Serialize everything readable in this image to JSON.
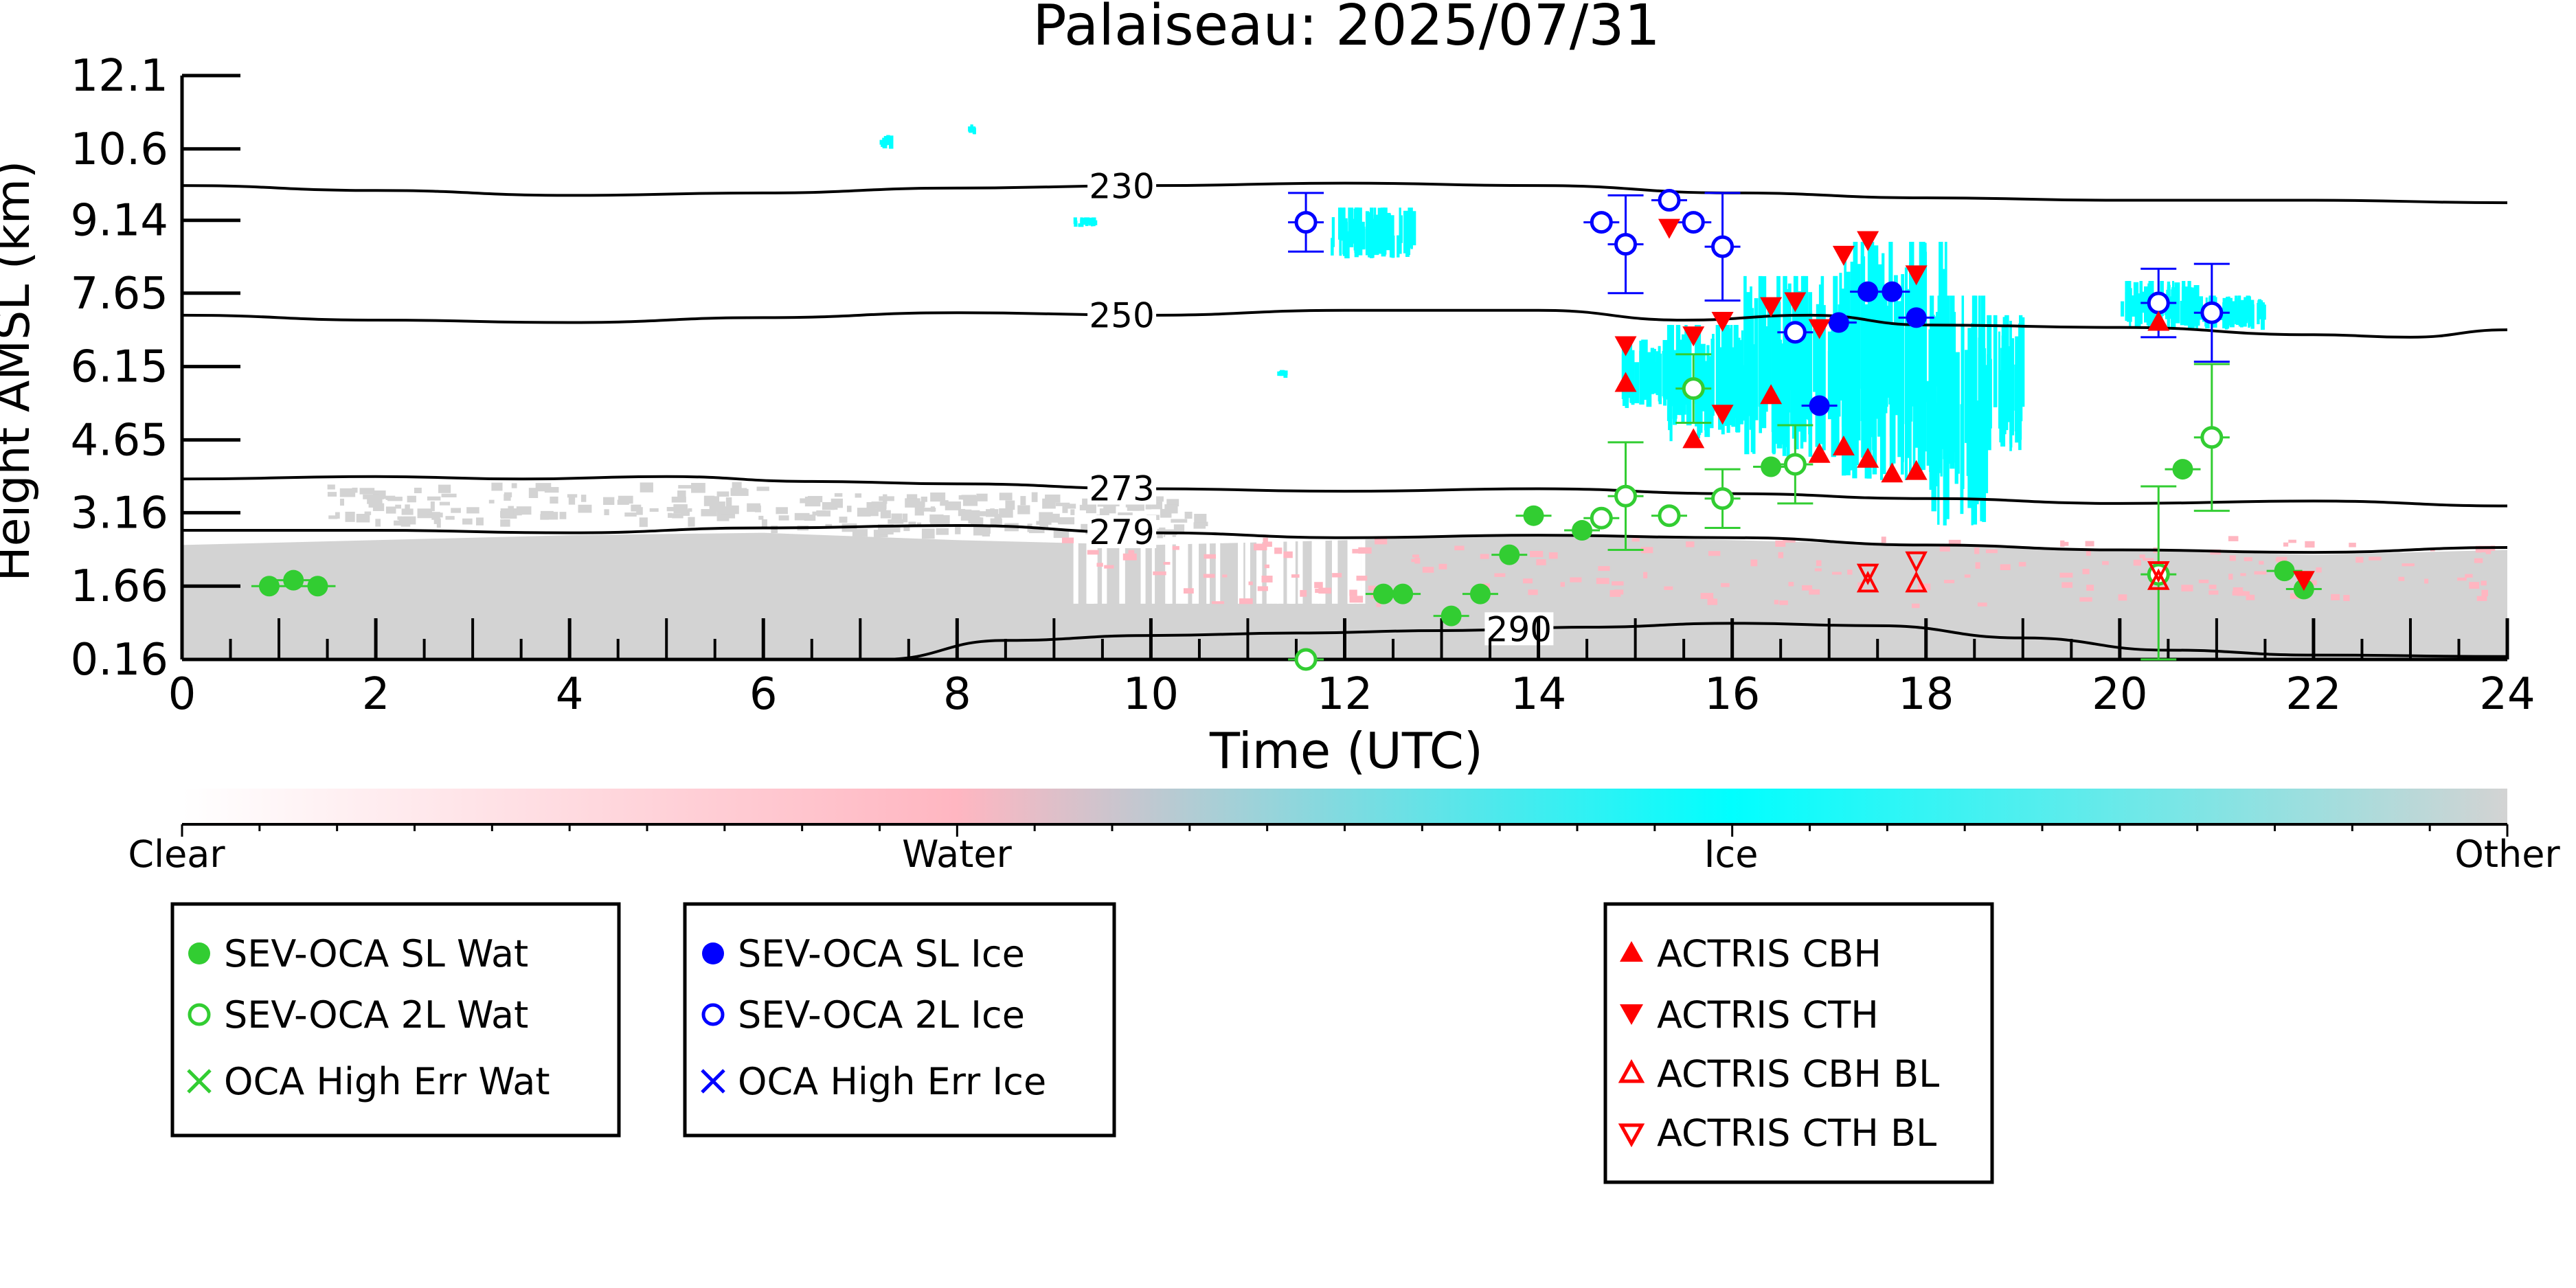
{
  "chart_data": {
    "type": "scatter",
    "title": "Palaiseau: 2025/07/31",
    "xlabel": "Time (UTC)",
    "ylabel": "Height AMSL (km)",
    "xlim": [
      0,
      24
    ],
    "ylim": [
      0.16,
      12.1
    ],
    "x_ticks": [
      "0",
      "2",
      "4",
      "6",
      "8",
      "10",
      "12",
      "14",
      "16",
      "18",
      "20",
      "22",
      "24"
    ],
    "y_ticks": [
      "0.16",
      "1.66",
      "3.16",
      "4.65",
      "6.15",
      "7.65",
      "9.14",
      "10.6",
      "12.1"
    ],
    "grid": false,
    "colorbar": {
      "labels": [
        "Clear",
        "Water",
        "Ice",
        "Other"
      ],
      "colors": [
        "#ffffff",
        "#ffb6c1",
        "#00ffff",
        "#d3d3d3"
      ]
    },
    "colors": {
      "water": "#32cd32",
      "ice": "#0000ff",
      "actris": "#ff0000",
      "contour": "#000000",
      "cloud_ice": "#00ffff",
      "cloud_water": "#ffb6c1",
      "cloud_other": "#d3d3d3"
    },
    "contours": [
      {
        "label": "230",
        "label_x": 9.7,
        "points": [
          [
            0,
            9.85
          ],
          [
            2,
            9.75
          ],
          [
            4,
            9.65
          ],
          [
            6,
            9.7
          ],
          [
            8,
            9.8
          ],
          [
            10,
            9.85
          ],
          [
            12,
            9.9
          ],
          [
            14,
            9.85
          ],
          [
            16,
            9.7
          ],
          [
            18,
            9.6
          ],
          [
            20,
            9.55
          ],
          [
            22,
            9.55
          ],
          [
            24,
            9.5
          ]
        ]
      },
      {
        "label": "250",
        "label_x": 9.7,
        "points": [
          [
            0,
            7.2
          ],
          [
            2,
            7.1
          ],
          [
            4,
            7.05
          ],
          [
            6,
            7.15
          ],
          [
            8,
            7.25
          ],
          [
            10,
            7.2
          ],
          [
            12,
            7.3
          ],
          [
            14,
            7.3
          ],
          [
            15.5,
            7.1
          ],
          [
            16.8,
            7.2
          ],
          [
            18,
            7.0
          ],
          [
            20,
            6.95
          ],
          [
            22,
            6.8
          ],
          [
            23,
            6.75
          ],
          [
            24,
            6.9
          ]
        ]
      },
      {
        "label": "273",
        "label_x": 9.7,
        "points": [
          [
            0,
            3.85
          ],
          [
            2,
            3.9
          ],
          [
            3.5,
            3.85
          ],
          [
            5,
            3.9
          ],
          [
            6.5,
            3.8
          ],
          [
            8,
            3.75
          ],
          [
            10,
            3.65
          ],
          [
            12,
            3.6
          ],
          [
            14,
            3.65
          ],
          [
            16,
            3.55
          ],
          [
            18,
            3.45
          ],
          [
            20,
            3.35
          ],
          [
            22,
            3.4
          ],
          [
            24,
            3.3
          ]
        ]
      },
      {
        "label": "279",
        "label_x": 9.7,
        "points": [
          [
            0,
            2.8
          ],
          [
            2,
            2.8
          ],
          [
            4,
            2.75
          ],
          [
            6,
            2.85
          ],
          [
            8,
            2.9
          ],
          [
            10,
            2.75
          ],
          [
            12,
            2.65
          ],
          [
            14,
            2.7
          ],
          [
            16,
            2.65
          ],
          [
            18,
            2.5
          ],
          [
            20,
            2.4
          ],
          [
            22,
            2.35
          ],
          [
            24,
            2.45
          ]
        ]
      },
      {
        "label": "290",
        "label_x": 13.8,
        "points": [
          [
            7.2,
            0.16
          ],
          [
            8.5,
            0.55
          ],
          [
            10,
            0.65
          ],
          [
            11.5,
            0.7
          ],
          [
            13,
            0.75
          ],
          [
            14.5,
            0.82
          ],
          [
            16,
            0.9
          ],
          [
            17.5,
            0.85
          ],
          [
            19,
            0.6
          ],
          [
            20.5,
            0.35
          ],
          [
            22,
            0.25
          ],
          [
            24,
            0.22
          ]
        ]
      }
    ],
    "series": [
      {
        "name": "SEV-OCA SL Wat",
        "marker": "filled-circle",
        "points": [
          {
            "x": 0.9,
            "y": 1.66
          },
          {
            "x": 1.15,
            "y": 1.78
          },
          {
            "x": 1.4,
            "y": 1.66
          },
          {
            "x": 12.4,
            "y": 1.5
          },
          {
            "x": 12.6,
            "y": 1.5
          },
          {
            "x": 13.1,
            "y": 1.05
          },
          {
            "x": 13.4,
            "y": 1.5
          },
          {
            "x": 13.7,
            "y": 2.3
          },
          {
            "x": 13.95,
            "y": 3.1
          },
          {
            "x": 14.45,
            "y": 2.8
          },
          {
            "x": 16.4,
            "y": 4.1
          },
          {
            "x": 20.65,
            "y": 4.05
          },
          {
            "x": 21.7,
            "y": 1.97
          },
          {
            "x": 21.9,
            "y": 1.6
          }
        ]
      },
      {
        "name": "SEV-OCA 2L Wat",
        "marker": "open-circle",
        "points": [
          {
            "x": 11.6,
            "y": 0.16
          },
          {
            "x": 14.65,
            "y": 3.05
          },
          {
            "x": 14.9,
            "y": 3.5,
            "err": 1.1
          },
          {
            "x": 15.35,
            "y": 3.1
          },
          {
            "x": 15.6,
            "y": 5.7,
            "err": 0.7
          },
          {
            "x": 15.9,
            "y": 3.45,
            "err": 0.6
          },
          {
            "x": 16.65,
            "y": 4.15,
            "err": 0.8
          },
          {
            "x": 20.4,
            "y": 1.9,
            "err": 1.8
          },
          {
            "x": 20.95,
            "y": 4.7,
            "err": 1.5
          }
        ]
      },
      {
        "name": "OCA High Err Wat",
        "marker": "x",
        "points": []
      },
      {
        "name": "SEV-OCA SL Ice",
        "marker": "filled-circle",
        "points": [
          {
            "x": 16.9,
            "y": 5.35
          },
          {
            "x": 17.1,
            "y": 7.05
          },
          {
            "x": 17.4,
            "y": 7.68
          },
          {
            "x": 17.65,
            "y": 7.68
          },
          {
            "x": 17.9,
            "y": 7.15
          }
        ]
      },
      {
        "name": "SEV-OCA 2L Ice",
        "marker": "open-circle",
        "points": [
          {
            "x": 11.6,
            "y": 9.1,
            "err": 0.6
          },
          {
            "x": 14.65,
            "y": 9.1
          },
          {
            "x": 14.9,
            "y": 8.65,
            "err": 1.0
          },
          {
            "x": 15.35,
            "y": 9.55
          },
          {
            "x": 15.6,
            "y": 9.1
          },
          {
            "x": 15.9,
            "y": 8.6,
            "err": 1.1
          },
          {
            "x": 16.65,
            "y": 6.85
          },
          {
            "x": 20.4,
            "y": 7.45,
            "err": 0.7
          },
          {
            "x": 20.95,
            "y": 7.25,
            "err": 1.0
          }
        ]
      },
      {
        "name": "OCA High Err Ice",
        "marker": "x",
        "points": []
      },
      {
        "name": "ACTRIS CBH",
        "marker": "triangle-up-filled",
        "points": [
          {
            "x": 14.9,
            "y": 5.8
          },
          {
            "x": 15.6,
            "y": 4.65
          },
          {
            "x": 16.4,
            "y": 5.55
          },
          {
            "x": 16.9,
            "y": 4.35
          },
          {
            "x": 17.15,
            "y": 4.5
          },
          {
            "x": 17.4,
            "y": 4.25
          },
          {
            "x": 17.65,
            "y": 3.95
          },
          {
            "x": 17.9,
            "y": 4.0
          },
          {
            "x": 20.4,
            "y": 7.05
          }
        ]
      },
      {
        "name": "ACTRIS CTH",
        "marker": "triangle-down-filled",
        "points": [
          {
            "x": 14.9,
            "y": 6.6
          },
          {
            "x": 15.35,
            "y": 9.0
          },
          {
            "x": 15.6,
            "y": 6.8
          },
          {
            "x": 15.9,
            "y": 5.2
          },
          {
            "x": 15.9,
            "y": 7.1
          },
          {
            "x": 16.4,
            "y": 7.4
          },
          {
            "x": 16.65,
            "y": 7.5
          },
          {
            "x": 16.9,
            "y": 6.95
          },
          {
            "x": 17.15,
            "y": 8.45
          },
          {
            "x": 17.4,
            "y": 8.75
          },
          {
            "x": 17.9,
            "y": 8.05
          },
          {
            "x": 21.9,
            "y": 1.8
          }
        ]
      },
      {
        "name": "ACTRIS CBH BL",
        "marker": "triangle-up-open",
        "points": [
          {
            "x": 17.4,
            "y": 1.7
          },
          {
            "x": 17.9,
            "y": 1.7
          },
          {
            "x": 20.4,
            "y": 1.75
          }
        ]
      },
      {
        "name": "ACTRIS CTH BL",
        "marker": "triangle-down-open",
        "points": [
          {
            "x": 17.4,
            "y": 1.95
          },
          {
            "x": 17.9,
            "y": 2.2
          },
          {
            "x": 20.4,
            "y": 2.0
          }
        ]
      }
    ]
  }
}
